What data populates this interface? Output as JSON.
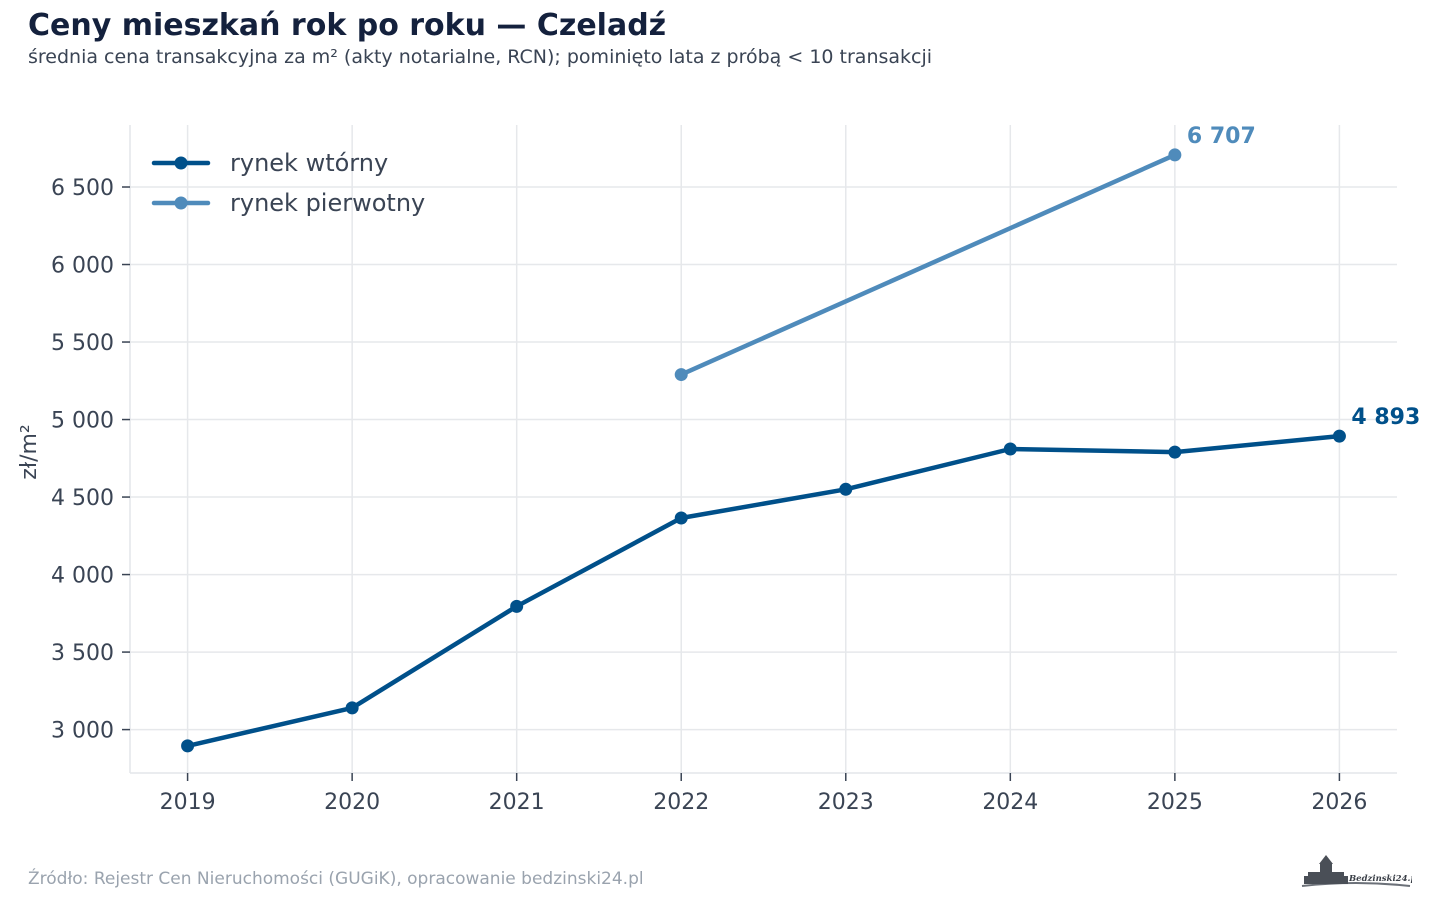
{
  "header": {
    "title": "Ceny mieszkań rok po roku — Czeladź",
    "subtitle": "średnia cena transakcyjna za m² (akty notarialne, RCN); pominięto lata z próbą < 10 transakcji"
  },
  "footer": {
    "source": "Źródło: Rejestr Cen Nieruchomości (GUGiK), opracowanie bedzinski24.pl",
    "logo_text": "Bedzinski24.pl"
  },
  "chart_data": {
    "type": "line",
    "title": "Ceny mieszkań rok po roku — Czeladź",
    "ylabel": "zł/m²",
    "xlabel": "",
    "x": [
      2019,
      2020,
      2021,
      2022,
      2023,
      2024,
      2025,
      2026
    ],
    "x_tick_labels": [
      "2019",
      "2020",
      "2021",
      "2022",
      "2023",
      "2024",
      "2025",
      "2026"
    ],
    "xlim": [
      2018.65,
      2026.35
    ],
    "ylim": [
      2720,
      6900
    ],
    "y_ticks": [
      3000,
      3500,
      4000,
      4500,
      5000,
      5500,
      6000,
      6500
    ],
    "y_tick_labels": [
      "3 000",
      "3 500",
      "4 000",
      "4 500",
      "5 000",
      "5 500",
      "6 000",
      "6 500"
    ],
    "grid": true,
    "legend_position": "top-left",
    "series": [
      {
        "name": "rynek wtórny",
        "color": "#00508a",
        "x": [
          2019,
          2020,
          2021,
          2022,
          2023,
          2024,
          2025,
          2026
        ],
        "values": [
          2895,
          3140,
          3795,
          4365,
          4550,
          4810,
          4790,
          4893
        ],
        "end_label": "4 893"
      },
      {
        "name": "rynek pierwotny",
        "color": "#4f8bbb",
        "x": [
          2022,
          2025
        ],
        "values": [
          5290,
          6707
        ],
        "end_label": "6 707"
      }
    ]
  }
}
